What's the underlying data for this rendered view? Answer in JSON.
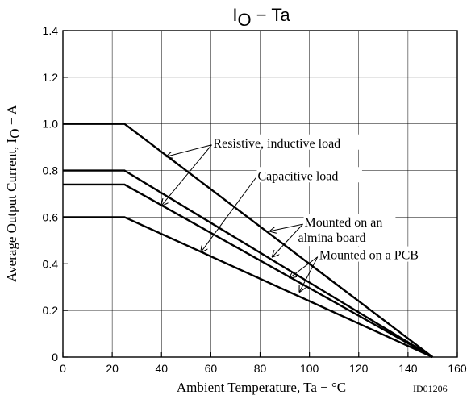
{
  "chart_data": {
    "type": "line",
    "title": "I",
    "title_sub": "O",
    "title_rest": " − Ta",
    "xlabel": "Ambient Temperature,  Ta  −  °C",
    "ylabel_main": "Average Output Current,  I",
    "ylabel_sub": "O",
    "ylabel_rest": "  −  A",
    "code": "ID01206",
    "xlim": [
      0,
      160
    ],
    "ylim": [
      0,
      1.4
    ],
    "x_ticks": [
      0,
      20,
      40,
      60,
      80,
      100,
      120,
      140,
      160
    ],
    "y_ticks": [
      0,
      0.2,
      0.4,
      0.6,
      0.8,
      1.0,
      1.2,
      1.4
    ],
    "x_tick_labels": [
      "0",
      "20",
      "40",
      "60",
      "80",
      "100",
      "120",
      "140",
      "160"
    ],
    "y_tick_labels": [
      "0",
      "0.2",
      "0.4",
      "0.6",
      "0.8",
      "1.0",
      "1.2",
      "1.4"
    ],
    "grid": true,
    "series": [
      {
        "points": [
          [
            0,
            1.0
          ],
          [
            25,
            1.0
          ],
          [
            150,
            0
          ]
        ]
      },
      {
        "points": [
          [
            0,
            0.8
          ],
          [
            25,
            0.8
          ],
          [
            150,
            0
          ]
        ]
      },
      {
        "points": [
          [
            0,
            0.74
          ],
          [
            25,
            0.74
          ],
          [
            150,
            0
          ]
        ]
      },
      {
        "points": [
          [
            0,
            0.6
          ],
          [
            25,
            0.6
          ],
          [
            150,
            0
          ]
        ]
      }
    ],
    "annotations": [
      {
        "text": "Resistive, inductive load",
        "anchor": [
          61,
          0.91
        ],
        "targets": [
          [
            42,
            0.86
          ],
          [
            40,
            0.65
          ]
        ]
      },
      {
        "text": "Capacitive load",
        "anchor": [
          79,
          0.77
        ],
        "targets": [
          [
            56,
            0.45
          ]
        ]
      },
      {
        "text": "Mounted on an",
        "text2": "almina board",
        "anchor": [
          98,
          0.57
        ],
        "targets": [
          [
            84,
            0.54
          ],
          [
            85,
            0.43
          ]
        ]
      },
      {
        "text": "Mounted on a PCB",
        "anchor": [
          104,
          0.43
        ],
        "targets": [
          [
            92,
            0.34
          ],
          [
            96,
            0.28
          ]
        ]
      }
    ]
  }
}
